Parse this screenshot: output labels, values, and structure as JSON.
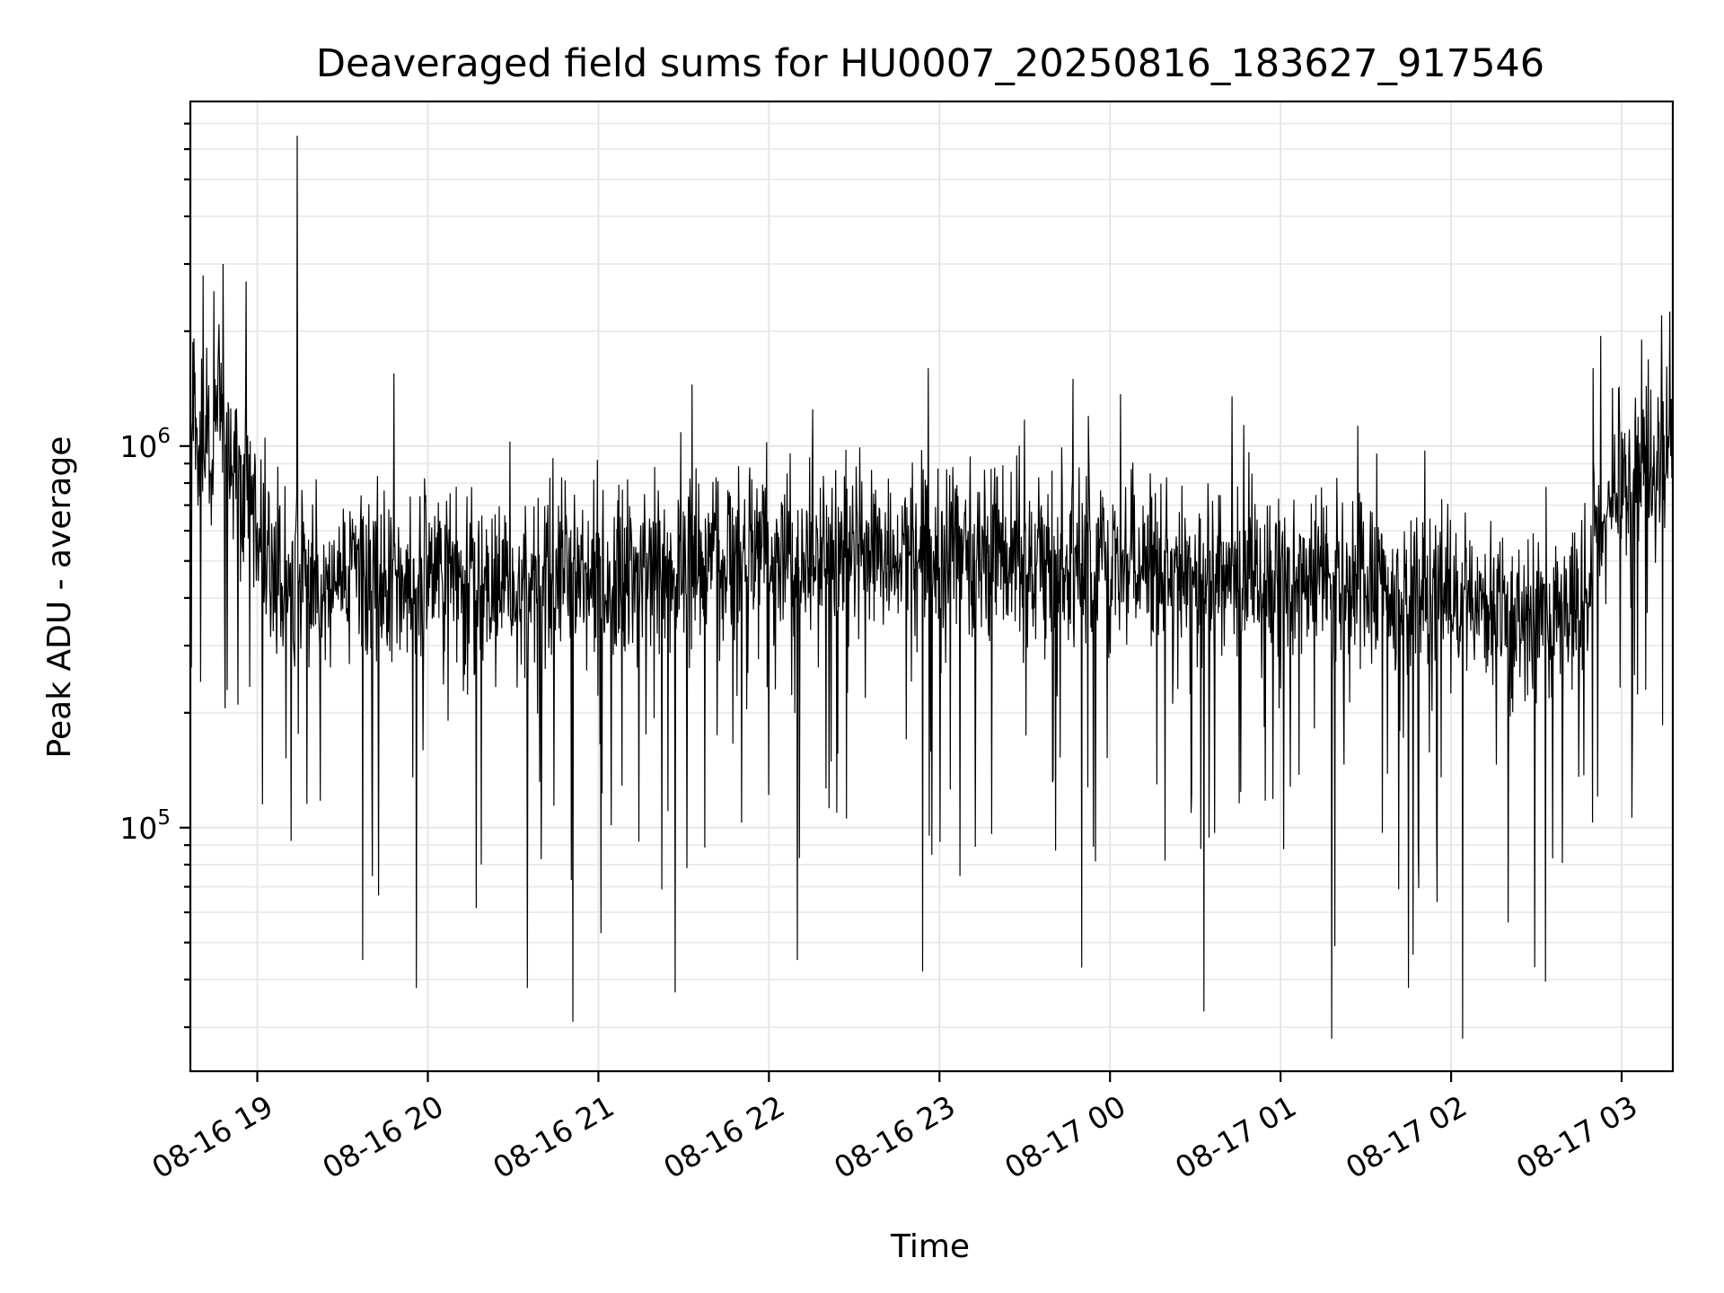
{
  "chart_data": {
    "type": "line",
    "title": "Deaveraged field sums for HU0007_20250816_183627_917546",
    "xlabel": "Time",
    "ylabel": "Peak ADU - average",
    "x_scale": "time",
    "y_scale": "log",
    "xlim": [
      "2025-08-16T18:36:27",
      "2025-08-17T03:18:00"
    ],
    "ylim": [
      23000,
      8000000
    ],
    "x_ticks": [
      "2025-08-16T19:00",
      "2025-08-16T20:00",
      "2025-08-16T21:00",
      "2025-08-16T22:00",
      "2025-08-16T23:00",
      "2025-08-17T00:00",
      "2025-08-17T01:00",
      "2025-08-17T02:00",
      "2025-08-17T03:00"
    ],
    "x_tick_labels": [
      "08-16 19",
      "08-16 20",
      "08-16 21",
      "08-16 22",
      "08-16 23",
      "08-17 00",
      "08-17 01",
      "08-17 02",
      "08-17 03"
    ],
    "y_ticks": [
      100000,
      1000000
    ],
    "y_tick_bases": [
      "10",
      "10"
    ],
    "y_tick_exponents": [
      "5",
      "6"
    ],
    "grid": true,
    "legend": "none",
    "line_color": "#000000",
    "baseline": [
      {
        "t": "2025-08-16T18:36",
        "y": 1150000
      },
      {
        "t": "2025-08-16T18:48",
        "y": 1050000
      },
      {
        "t": "2025-08-16T18:58",
        "y": 750000
      },
      {
        "t": "2025-08-16T19:05",
        "y": 430000
      },
      {
        "t": "2025-08-16T19:20",
        "y": 430000
      },
      {
        "t": "2025-08-16T19:45",
        "y": 460000
      },
      {
        "t": "2025-08-16T20:30",
        "y": 420000
      },
      {
        "t": "2025-08-16T21:00",
        "y": 440000
      },
      {
        "t": "2025-08-16T21:30",
        "y": 470000
      },
      {
        "t": "2025-08-16T22:00",
        "y": 520000
      },
      {
        "t": "2025-08-16T22:30",
        "y": 530000
      },
      {
        "t": "2025-08-16T23:00",
        "y": 520000
      },
      {
        "t": "2025-08-16T23:30",
        "y": 510000
      },
      {
        "t": "2025-08-17T00:00",
        "y": 490000
      },
      {
        "t": "2025-08-17T00:30",
        "y": 470000
      },
      {
        "t": "2025-08-17T01:00",
        "y": 450000
      },
      {
        "t": "2025-08-17T01:30",
        "y": 430000
      },
      {
        "t": "2025-08-17T02:00",
        "y": 400000
      },
      {
        "t": "2025-08-17T02:30",
        "y": 330000
      },
      {
        "t": "2025-08-17T02:45",
        "y": 380000
      },
      {
        "t": "2025-08-17T02:53",
        "y": 650000
      },
      {
        "t": "2025-08-17T03:00",
        "y": 780000
      },
      {
        "t": "2025-08-17T03:18",
        "y": 1000000
      }
    ],
    "spikes_high": [
      {
        "t": "2025-08-16T19:14",
        "y": 6500000
      },
      {
        "t": "2025-08-16T18:48",
        "y": 3000000
      },
      {
        "t": "2025-08-16T18:41",
        "y": 2800000
      },
      {
        "t": "2025-08-16T18:56",
        "y": 2700000
      },
      {
        "t": "2025-08-16T19:48",
        "y": 1550000
      },
      {
        "t": "2025-08-16T21:33",
        "y": 1450000
      },
      {
        "t": "2025-08-16T22:10",
        "y": 1600000
      },
      {
        "t": "2025-08-16T22:56",
        "y": 1600000
      },
      {
        "t": "2025-08-16T23:47",
        "y": 1500000
      },
      {
        "t": "2025-08-17T00:43",
        "y": 1350000
      },
      {
        "t": "2025-08-17T02:50",
        "y": 1600000
      },
      {
        "t": "2025-08-17T03:07",
        "y": 1900000
      },
      {
        "t": "2025-08-17T03:14",
        "y": 2200000
      },
      {
        "t": "2025-08-17T03:17",
        "y": 2250000
      }
    ],
    "spikes_low": [
      {
        "t": "2025-08-16T19:56",
        "y": 38000
      },
      {
        "t": "2025-08-16T20:35",
        "y": 38000
      },
      {
        "t": "2025-08-16T20:51",
        "y": 31000
      },
      {
        "t": "2025-08-16T21:27",
        "y": 37000
      },
      {
        "t": "2025-08-16T22:54",
        "y": 42000
      },
      {
        "t": "2025-08-17T00:33",
        "y": 33000
      },
      {
        "t": "2025-08-17T01:18",
        "y": 28000
      },
      {
        "t": "2025-08-17T02:04",
        "y": 28000
      },
      {
        "t": "2025-08-16T19:37",
        "y": 45000
      },
      {
        "t": "2025-08-16T22:10",
        "y": 45000
      },
      {
        "t": "2025-08-16T23:50",
        "y": 43000
      },
      {
        "t": "2025-08-17T01:45",
        "y": 38000
      }
    ]
  }
}
